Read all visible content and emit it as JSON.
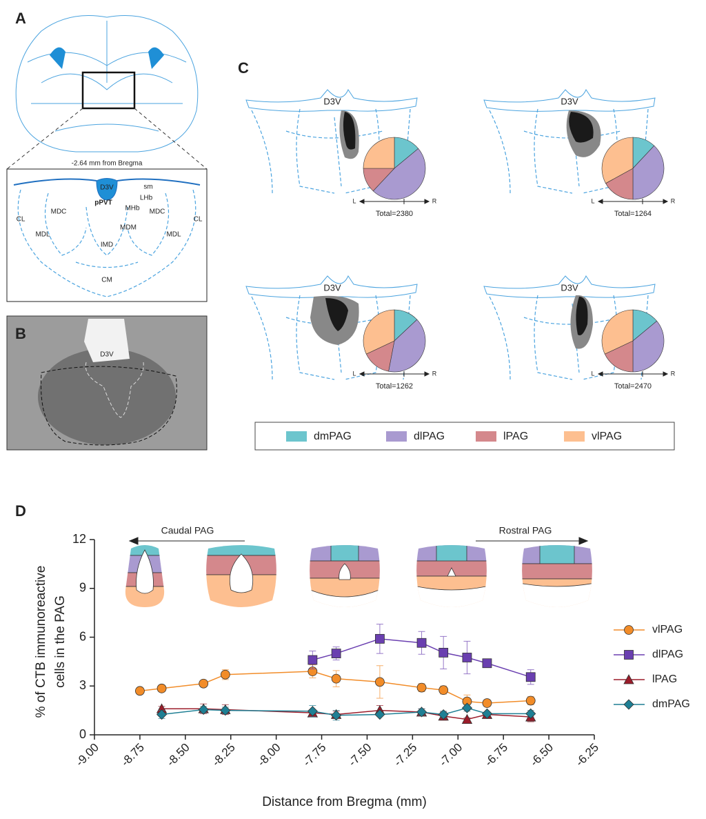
{
  "panel_a": {
    "label": "A",
    "caption": "-2.64 mm from Bregma",
    "regions": [
      "D3V",
      "sm",
      "LHb",
      "pPVT",
      "MHb",
      "MDC",
      "MDC",
      "CL",
      "CL",
      "MDL",
      "MDL",
      "MDM",
      "IMD",
      "CM"
    ]
  },
  "panel_b": {
    "label": "B",
    "region": "D3V"
  },
  "panel_c": {
    "label": "C",
    "region": "D3V"
  },
  "panel_d": {
    "label": "D"
  },
  "chart_data": [
    {
      "type": "pie",
      "categories": [
        "dmPAG",
        "dlPAG",
        "lPAG",
        "vlPAG"
      ],
      "values": [
        14,
        48,
        13,
        25
      ],
      "colors": [
        "#6cc5cd",
        "#a99ad0",
        "#d4888c",
        "#fdbf90"
      ],
      "total": "Total=2380",
      "axis_ends": [
        "L",
        "R"
      ]
    },
    {
      "type": "pie",
      "categories": [
        "dmPAG",
        "dlPAG",
        "lPAG",
        "vlPAG"
      ],
      "values": [
        12,
        38,
        17,
        33
      ],
      "colors": [
        "#6cc5cd",
        "#a99ad0",
        "#d4888c",
        "#fdbf90"
      ],
      "total": "Total=1264",
      "axis_ends": [
        "L",
        "R"
      ]
    },
    {
      "type": "pie",
      "categories": [
        "dmPAG",
        "dlPAG",
        "lPAG",
        "vlPAG"
      ],
      "values": [
        13,
        40,
        15,
        32
      ],
      "colors": [
        "#6cc5cd",
        "#a99ad0",
        "#d4888c",
        "#fdbf90"
      ],
      "total": "Total=1262",
      "axis_ends": [
        "L",
        "R"
      ]
    },
    {
      "type": "pie",
      "categories": [
        "dmPAG",
        "dlPAG",
        "lPAG",
        "vlPAG"
      ],
      "values": [
        14,
        36,
        18,
        32
      ],
      "colors": [
        "#6cc5cd",
        "#a99ad0",
        "#d4888c",
        "#fdbf90"
      ],
      "total": "Total=2470",
      "axis_ends": [
        "L",
        "R"
      ]
    },
    {
      "type": "line",
      "ylabel": [
        "% of CTB immunoreactive",
        "cells in the PAG"
      ],
      "xlabel": "Distance from Bregma (mm)",
      "annotations": [
        "Caudal PAG",
        "Rostral PAG"
      ],
      "xlim": [
        -9.0,
        -6.25
      ],
      "xticks": [
        {
          "value": -9.0,
          "label": "-9.00"
        },
        {
          "value": -8.75,
          "label": "-8.75"
        },
        {
          "value": -8.5,
          "label": "-8.50"
        },
        {
          "value": -8.25,
          "label": "-8.25"
        },
        {
          "value": -8.0,
          "label": "-8.00"
        },
        {
          "value": -7.75,
          "label": "-7.75"
        },
        {
          "value": -7.5,
          "label": "-7.50"
        },
        {
          "value": -7.25,
          "label": "-7.25"
        },
        {
          "value": -7.0,
          "label": "-7.00"
        },
        {
          "value": -6.75,
          "label": "-6.75"
        },
        {
          "value": -6.5,
          "label": "-6.50"
        },
        {
          "value": -6.25,
          "label": "-6.25"
        }
      ],
      "ylim": [
        0,
        12
      ],
      "yticks": [
        0,
        3,
        6,
        9,
        12
      ],
      "grid": false,
      "series": [
        {
          "name": "vlPAG",
          "color": "#f28c28",
          "marker": "circle",
          "x": [
            -8.75,
            -8.63,
            -8.4,
            -8.28,
            -7.8,
            -7.67,
            -7.43,
            -7.2,
            -7.08,
            -6.95,
            -6.84,
            -6.6
          ],
          "values": [
            2.7,
            2.85,
            3.15,
            3.7,
            3.9,
            3.45,
            3.25,
            2.9,
            2.75,
            2.05,
            1.95,
            2.1
          ],
          "errors": [
            0.2,
            0.2,
            0.15,
            0.3,
            0.4,
            0.5,
            1.0,
            0.25,
            0.25,
            0.4,
            0.2,
            0.25
          ]
        },
        {
          "name": "dlPAG",
          "color": "#6a3fb0",
          "marker": "square",
          "x": [
            -7.8,
            -7.67,
            -7.43,
            -7.2,
            -7.08,
            -6.95,
            -6.84,
            -6.6
          ],
          "values": [
            4.6,
            5.0,
            5.9,
            5.65,
            5.05,
            4.75,
            4.4,
            3.55
          ],
          "errors": [
            0.55,
            0.4,
            0.9,
            0.7,
            1.0,
            1.0,
            0.15,
            0.45
          ]
        },
        {
          "name": "lPAG",
          "color": "#9b1c2a",
          "marker": "triangle",
          "x": [
            -8.63,
            -8.4,
            -8.28,
            -7.8,
            -7.67,
            -7.43,
            -7.2,
            -7.08,
            -6.95,
            -6.84,
            -6.6
          ],
          "values": [
            1.6,
            1.6,
            1.55,
            1.35,
            1.25,
            1.5,
            1.4,
            1.15,
            0.95,
            1.25,
            1.1
          ],
          "errors": [
            0.15,
            0.3,
            0.3,
            0.2,
            0.2,
            0.3,
            0.2,
            0.25,
            0.1,
            0.15,
            0.3
          ]
        },
        {
          "name": "dmPAG",
          "color": "#1f7f94",
          "marker": "diamond",
          "x": [
            -8.63,
            -8.4,
            -8.28,
            -7.8,
            -7.67,
            -7.43,
            -7.2,
            -7.08,
            -6.95,
            -6.84,
            -6.6
          ],
          "values": [
            1.25,
            1.55,
            1.5,
            1.45,
            1.2,
            1.25,
            1.4,
            1.25,
            1.65,
            1.3,
            1.3
          ],
          "errors": [
            0.25,
            0.2,
            0.2,
            0.35,
            0.3,
            0.1,
            0.2,
            0.2,
            0.2,
            0.1,
            0.2
          ]
        }
      ]
    }
  ]
}
